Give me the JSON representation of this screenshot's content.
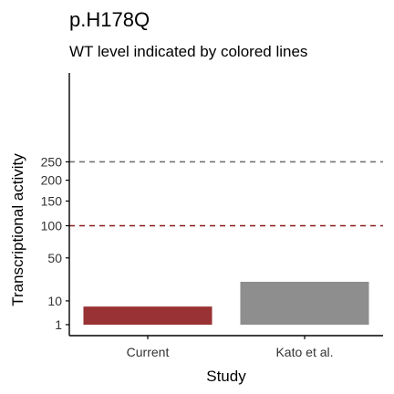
{
  "chart_data": {
    "type": "bar",
    "title": "p.H178Q",
    "subtitle": "WT level indicated by colored lines",
    "xlabel": "Study",
    "ylabel": "Transcriptional activity",
    "y_scale": "sqrt",
    "ylim": [
      0,
      350
    ],
    "yticks": [
      1,
      10,
      50,
      100,
      150,
      200,
      250
    ],
    "ytick_labels": [
      "1",
      "10",
      "50",
      "100",
      "150",
      "200",
      "250"
    ],
    "categories": [
      "Current",
      "Kato et al."
    ],
    "values": [
      7,
      24
    ],
    "bar_colors": [
      "#983234",
      "#8e8e8e"
    ],
    "reference_lines": [
      {
        "value": 100,
        "color": "#8b1a1a",
        "style": "dashed"
      },
      {
        "value": 250,
        "color": "#737373",
        "style": "dashed"
      }
    ],
    "grid": false,
    "legend": "none"
  }
}
